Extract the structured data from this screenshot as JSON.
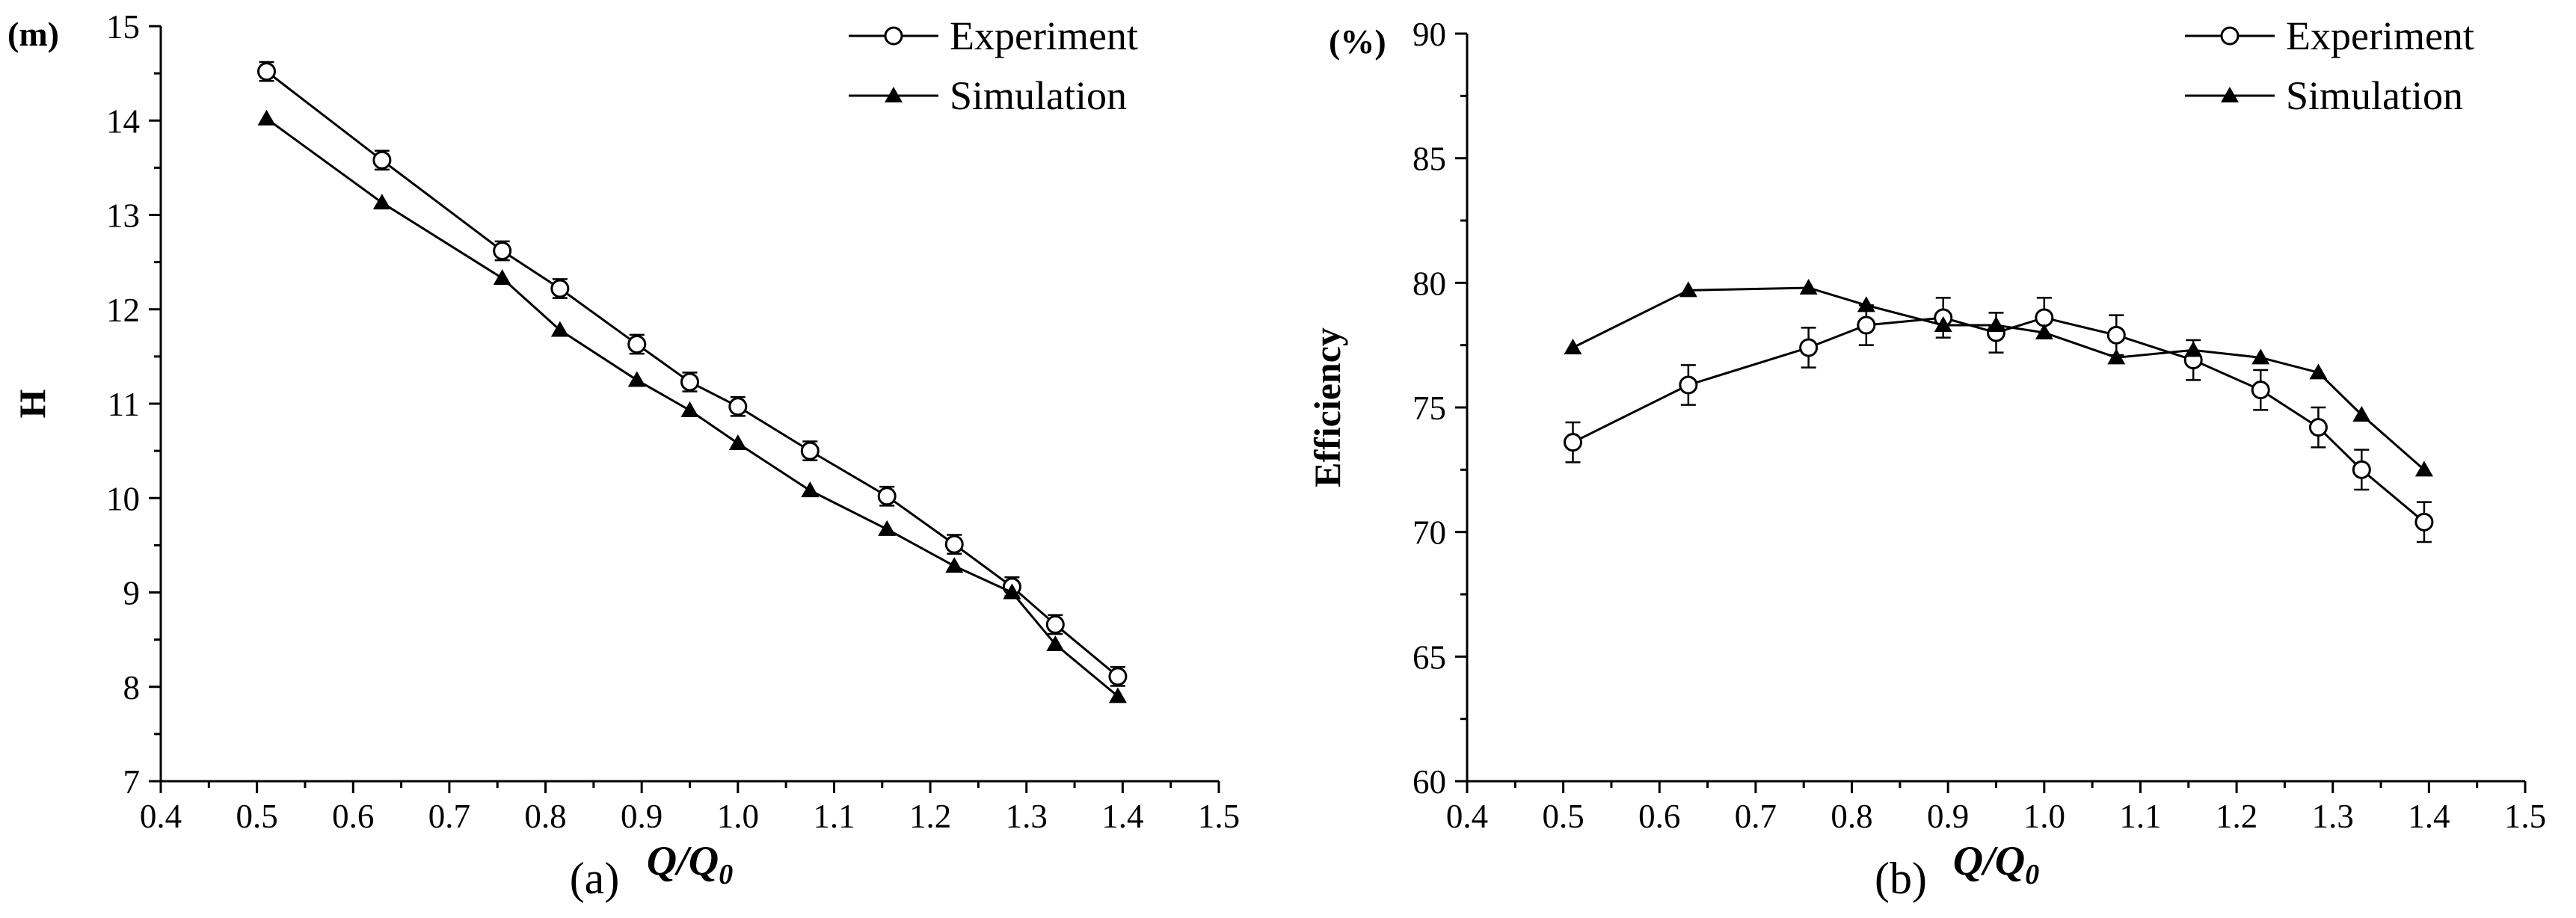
{
  "chart_data": [
    {
      "type": "line",
      "panel": "a",
      "caption": "(a)",
      "title": "",
      "ylabel": "H",
      "yunit": "(m)",
      "xlabel": "Q/Q",
      "xlabel_sub": "0",
      "xlim": [
        0.4,
        1.5
      ],
      "ylim": [
        7,
        15
      ],
      "xticks": [
        "0.4",
        "0.5",
        "0.6",
        "0.7",
        "0.8",
        "0.9",
        "1.0",
        "1.1",
        "1.2",
        "1.3",
        "1.4",
        "1.5"
      ],
      "yticks": [
        "7",
        "8",
        "9",
        "10",
        "11",
        "12",
        "13",
        "14",
        "15"
      ],
      "legend_position": "top-right",
      "series": [
        {
          "name": "Experiment",
          "marker": "open-circle",
          "error_bars": true,
          "x": [
            0.51,
            0.63,
            0.755,
            0.815,
            0.895,
            0.95,
            1.0,
            1.075,
            1.155,
            1.225,
            1.285,
            1.33,
            1.395
          ],
          "y": [
            14.52,
            13.58,
            12.62,
            12.22,
            11.63,
            11.23,
            10.97,
            10.5,
            10.02,
            9.51,
            9.06,
            8.66,
            8.11
          ],
          "err": [
            0.1,
            0.1,
            0.1,
            0.1,
            0.1,
            0.1,
            0.1,
            0.1,
            0.1,
            0.1,
            0.1,
            0.1,
            0.1
          ]
        },
        {
          "name": "Simulation",
          "marker": "filled-triangle",
          "error_bars": false,
          "x": [
            0.51,
            0.63,
            0.755,
            0.815,
            0.895,
            0.95,
            1.0,
            1.075,
            1.155,
            1.225,
            1.285,
            1.33,
            1.395
          ],
          "y": [
            14.02,
            13.13,
            12.33,
            11.78,
            11.25,
            10.93,
            10.58,
            10.08,
            9.67,
            9.28,
            9.0,
            8.45,
            7.9
          ]
        }
      ]
    },
    {
      "type": "line",
      "panel": "b",
      "caption": "(b)",
      "title": "",
      "ylabel": "Efficiency",
      "yunit": "(%)",
      "xlabel": "Q/Q",
      "xlabel_sub": "0",
      "xlim": [
        0.4,
        1.5
      ],
      "ylim": [
        60,
        90
      ],
      "xticks": [
        "0.4",
        "0.5",
        "0.6",
        "0.7",
        "0.8",
        "0.9",
        "1.0",
        "1.1",
        "1.2",
        "1.3",
        "1.4",
        "1.5"
      ],
      "yticks": [
        "60",
        "65",
        "70",
        "75",
        "80",
        "85",
        "90"
      ],
      "legend_position": "top-right",
      "series": [
        {
          "name": "Experiment",
          "marker": "open-circle",
          "error_bars": true,
          "x": [
            0.51,
            0.63,
            0.755,
            0.815,
            0.895,
            0.95,
            1.0,
            1.075,
            1.155,
            1.225,
            1.285,
            1.33,
            1.395
          ],
          "y": [
            73.6,
            75.9,
            77.4,
            78.3,
            78.6,
            78.0,
            78.6,
            77.9,
            76.9,
            75.7,
            74.2,
            72.5,
            70.4
          ],
          "err": [
            0.8,
            0.8,
            0.8,
            0.8,
            0.8,
            0.8,
            0.8,
            0.8,
            0.8,
            0.8,
            0.8,
            0.8,
            0.8
          ]
        },
        {
          "name": "Simulation",
          "marker": "filled-triangle",
          "error_bars": false,
          "x": [
            0.51,
            0.63,
            0.755,
            0.815,
            0.895,
            0.95,
            1.0,
            1.075,
            1.155,
            1.225,
            1.285,
            1.33,
            1.395
          ],
          "y": [
            77.4,
            79.7,
            79.8,
            79.1,
            78.3,
            78.3,
            78.0,
            77.0,
            77.3,
            77.0,
            76.4,
            74.7,
            72.5
          ]
        }
      ]
    }
  ]
}
